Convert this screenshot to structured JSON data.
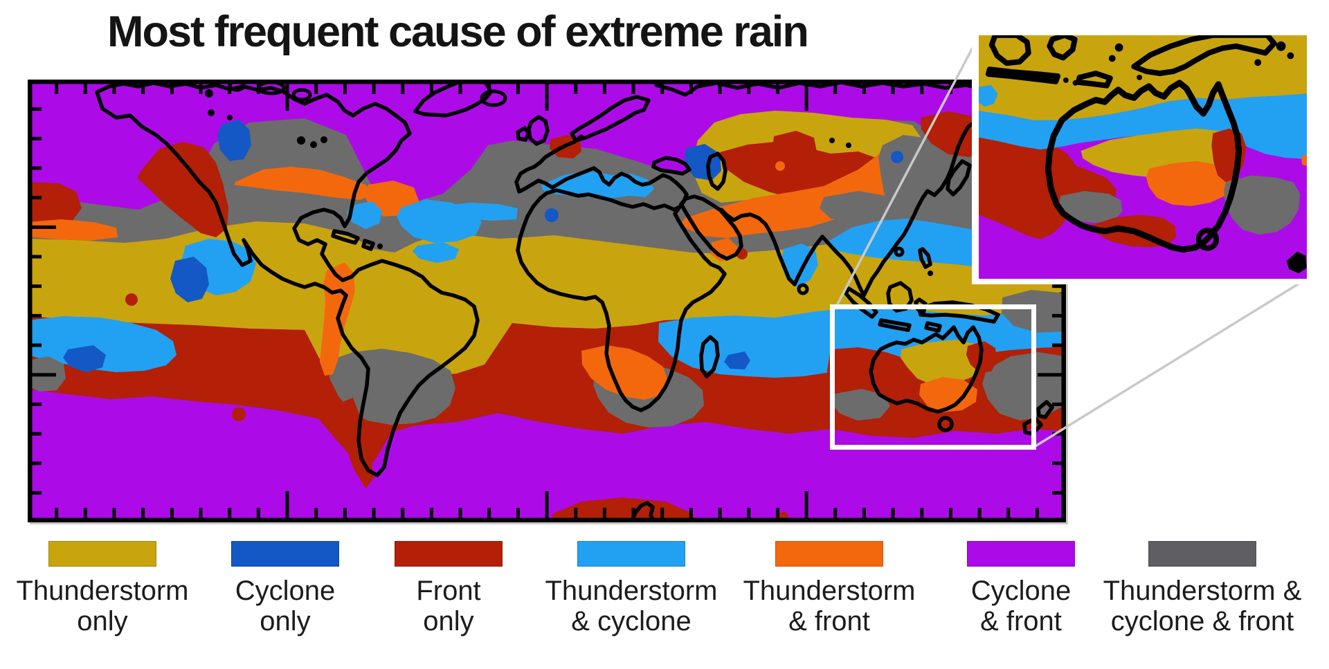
{
  "title": "Most frequent cause of extreme rain",
  "legend": {
    "items": [
      {
        "id": "thunderstorm-only",
        "color": "#C8A50E",
        "line1": "Thunderstorm",
        "line2": "only"
      },
      {
        "id": "cyclone-only",
        "color": "#1358C5",
        "line1": "Cyclone",
        "line2": "only"
      },
      {
        "id": "front-only",
        "color": "#B31F07",
        "line1": "Front",
        "line2": "only"
      },
      {
        "id": "thunderstorm-cyclone",
        "color": "#22A1F2",
        "line1": "Thunderstorm",
        "line2": "& cyclone"
      },
      {
        "id": "thunderstorm-front",
        "color": "#F4680D",
        "line1": "Thunderstorm",
        "line2": "& front"
      },
      {
        "id": "cyclone-front",
        "color": "#AC0BE8",
        "line1": "Cyclone",
        "line2": "& front"
      },
      {
        "id": "thunderstorm-cyclone-front",
        "color": "#5E5E63",
        "line1": "Thunderstorm &",
        "line2": "cyclone & front"
      }
    ]
  },
  "map": {
    "palette": {
      "purple": "#AC0BE8",
      "yellow": "#C8A50E",
      "red": "#B31F07",
      "orange": "#F4680D",
      "lightblue": "#22A1F2",
      "blue": "#1358C5",
      "gray": "#6C6C6C",
      "coast": "#000000",
      "frame": "#000000"
    },
    "inset": {
      "border_color": "#FFFFFF",
      "connector_color": "#C9C9C9"
    }
  }
}
